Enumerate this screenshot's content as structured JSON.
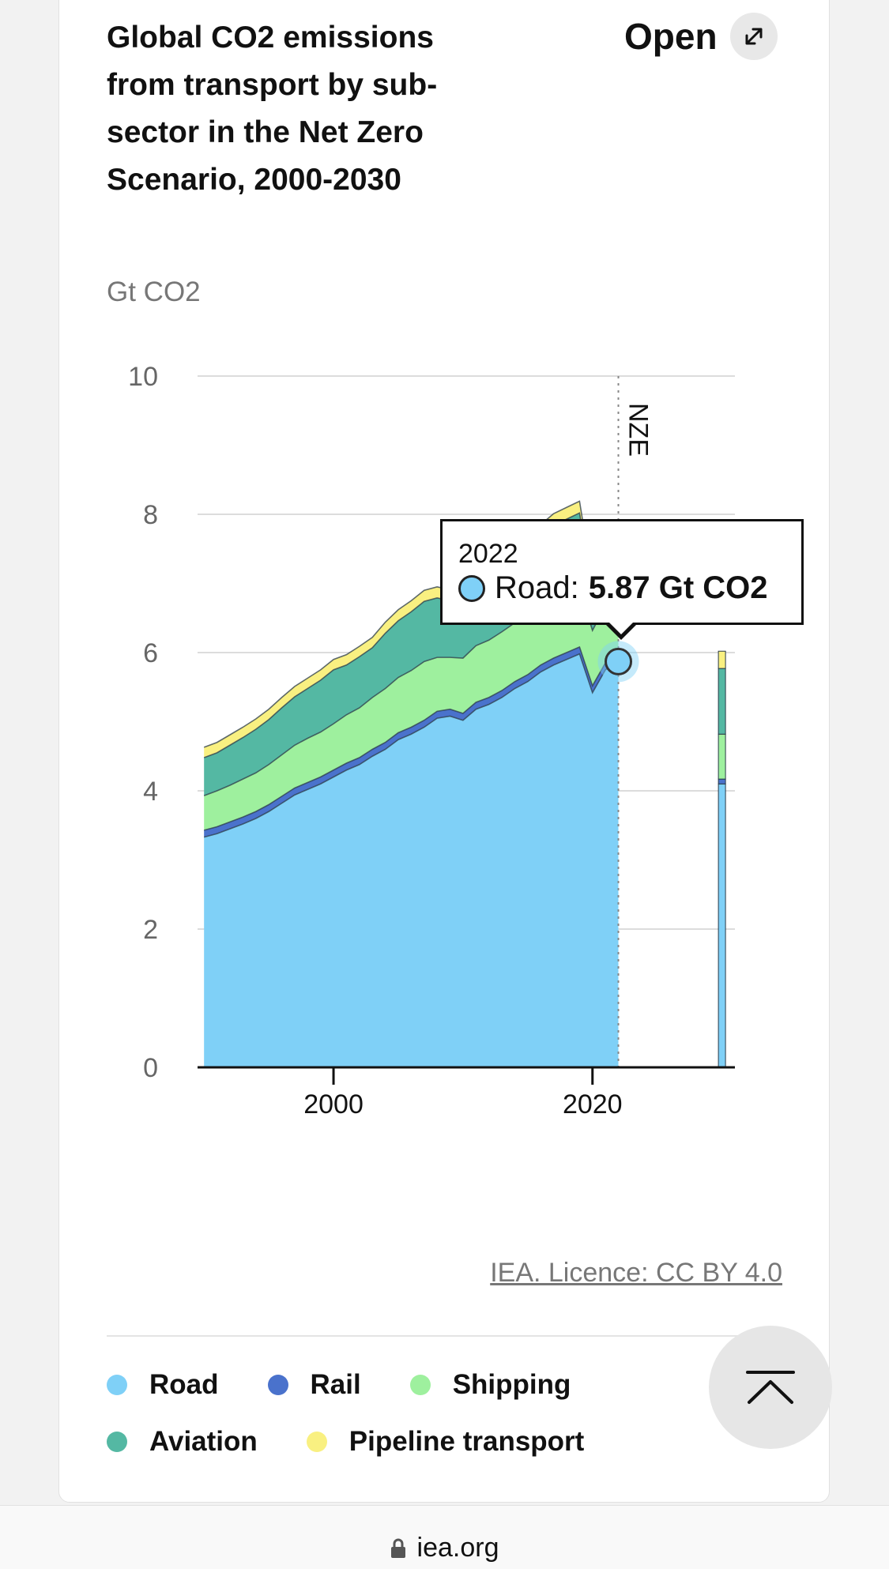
{
  "header": {
    "title": "Global CO2 emissions from transport by sub-sector in the Net Zero Scenario, 2000-2030",
    "open_label": "Open",
    "open_icon": "expand-icon"
  },
  "licence": "IEA. Licence: CC BY 4.0",
  "footer": {
    "domain": "iea.org",
    "lock_icon": "lock-icon",
    "top_icon": "scroll-to-top-icon"
  },
  "tooltip": {
    "year": "2022",
    "series_label": "Road:",
    "value_text": "5.87 Gt CO2"
  },
  "chart_data": {
    "type": "area",
    "ylabel": "Gt CO2",
    "ylim": [
      0,
      10
    ],
    "yticks": [
      0,
      2,
      4,
      6,
      8,
      10
    ],
    "xticks": [
      2000,
      2020
    ],
    "xlim": [
      1989.5,
      2031
    ],
    "marker": {
      "x": 2022,
      "label": "NZE"
    },
    "grid": true,
    "legend_position": "bottom",
    "years": [
      1990,
      1991,
      1992,
      1993,
      1994,
      1995,
      1996,
      1997,
      1998,
      1999,
      2000,
      2001,
      2002,
      2003,
      2004,
      2005,
      2006,
      2007,
      2008,
      2009,
      2010,
      2011,
      2012,
      2013,
      2014,
      2015,
      2016,
      2017,
      2018,
      2019,
      2020,
      2021,
      2022
    ],
    "series": [
      {
        "name": "Road",
        "color": "#7fd0f7",
        "values": [
          3.33,
          3.38,
          3.45,
          3.52,
          3.6,
          3.7,
          3.82,
          3.94,
          4.02,
          4.1,
          4.2,
          4.3,
          4.38,
          4.5,
          4.6,
          4.74,
          4.82,
          4.92,
          5.05,
          5.08,
          5.02,
          5.18,
          5.25,
          5.35,
          5.48,
          5.58,
          5.72,
          5.82,
          5.9,
          5.98,
          5.42,
          5.75,
          5.87
        ]
      },
      {
        "name": "Rail",
        "color": "#4a72cc",
        "values": [
          0.1,
          0.1,
          0.1,
          0.1,
          0.1,
          0.1,
          0.1,
          0.1,
          0.1,
          0.1,
          0.1,
          0.1,
          0.1,
          0.1,
          0.1,
          0.1,
          0.1,
          0.1,
          0.1,
          0.1,
          0.1,
          0.1,
          0.1,
          0.1,
          0.1,
          0.1,
          0.1,
          0.1,
          0.1,
          0.1,
          0.1,
          0.1,
          0.1
        ]
      },
      {
        "name": "Shipping",
        "color": "#9ef09e",
        "values": [
          0.5,
          0.52,
          0.53,
          0.55,
          0.56,
          0.58,
          0.6,
          0.62,
          0.64,
          0.65,
          0.67,
          0.7,
          0.72,
          0.75,
          0.78,
          0.8,
          0.82,
          0.85,
          0.78,
          0.75,
          0.8,
          0.82,
          0.83,
          0.85,
          0.85,
          0.86,
          0.86,
          0.87,
          0.85,
          0.84,
          0.8,
          0.83,
          0.85
        ]
      },
      {
        "name": "Aviation",
        "color": "#54b8a3",
        "values": [
          0.55,
          0.55,
          0.58,
          0.6,
          0.63,
          0.65,
          0.68,
          0.7,
          0.72,
          0.75,
          0.78,
          0.72,
          0.74,
          0.72,
          0.8,
          0.82,
          0.85,
          0.87,
          0.86,
          0.82,
          0.85,
          0.86,
          0.88,
          0.9,
          0.93,
          0.96,
          1.0,
          1.05,
          1.08,
          1.1,
          0.55,
          0.7,
          0.9
        ]
      },
      {
        "name": "Pipeline transport",
        "color": "#f9f081",
        "values": [
          0.15,
          0.15,
          0.15,
          0.15,
          0.15,
          0.15,
          0.15,
          0.15,
          0.15,
          0.15,
          0.15,
          0.15,
          0.15,
          0.15,
          0.16,
          0.16,
          0.16,
          0.16,
          0.16,
          0.16,
          0.16,
          0.16,
          0.16,
          0.16,
          0.16,
          0.17,
          0.17,
          0.17,
          0.17,
          0.17,
          0.16,
          0.17,
          0.17
        ]
      }
    ],
    "bar_2030": {
      "x": 2030,
      "values": [
        4.1,
        0.07,
        0.65,
        0.95,
        0.25
      ]
    }
  }
}
